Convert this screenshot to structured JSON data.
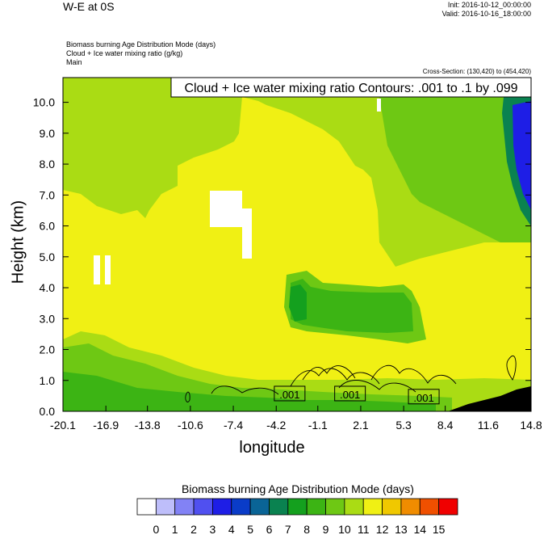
{
  "header": {
    "title": "W-E at 0S",
    "init": "Init: 2016-10-12_00:00:00",
    "valid": "Valid: 2016-10-16_18:00:00",
    "line1": "Biomass burning Age Distribution Mode   (days)",
    "line2": "Cloud + Ice water mixing ratio   (g/kg)",
    "line3": "Main",
    "cross_section": "Cross-Section: (130,420) to (454,420)"
  },
  "chart_data": {
    "type": "heatmap",
    "title": "W-E at 0S",
    "xlabel": "longitude",
    "ylabel": "Height (km)",
    "x_ticks": [
      "-20.1",
      "-16.9",
      "-13.8",
      "-10.6",
      "-7.4",
      "-4.2",
      "-1.1",
      "2.1",
      "5.3",
      "8.4",
      "11.6",
      "14.8"
    ],
    "y_ticks": [
      "0.0",
      "1.0",
      "2.0",
      "3.0",
      "4.0",
      "5.0",
      "6.0",
      "7.0",
      "8.0",
      "9.0",
      "10.0"
    ],
    "xlim": [
      -20.1,
      14.8
    ],
    "ylim": [
      0,
      10.8
    ],
    "contour_label": "Cloud + Ice water mixing ratio Contours: .001 to .1 by .099",
    "contour_labels": [
      ".001",
      ".001",
      ".001"
    ],
    "colorbar": {
      "title": "Biomass burning Age Distribution Mode  (days)",
      "labels": [
        "0",
        "1",
        "2",
        "3",
        "4",
        "5",
        "6",
        "7",
        "8",
        "9",
        "10",
        "11",
        "12",
        "13",
        "14",
        "15"
      ],
      "colors": [
        "#ffffff",
        "#bebefa",
        "#8282f5",
        "#5050f0",
        "#1e1ee6",
        "#0a3cc8",
        "#0a6496",
        "#0a8250",
        "#14a01e",
        "#3cb414",
        "#6ec814",
        "#aadc14",
        "#f0f014",
        "#f0c800",
        "#f08c00",
        "#f05000",
        "#f00000"
      ]
    }
  }
}
